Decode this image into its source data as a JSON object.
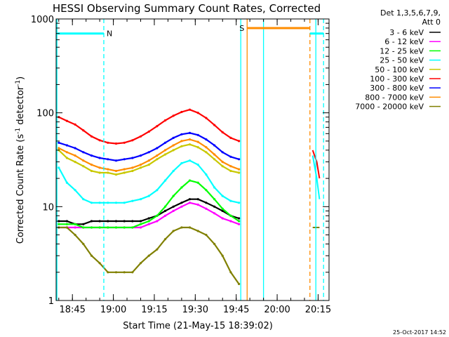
{
  "chart_data": {
    "type": "line",
    "title": "HESSI Observing Summary Count Rates, Corrected",
    "xlabel": "Start Time (21-May-15 18:39:02)",
    "ylabel_prefix": "Corrected Count Rate (s",
    "ylabel_sup1": "-1",
    "ylabel_mid": " detector",
    "ylabel_sup2": "-1",
    "ylabel_suffix": ")",
    "yscale": "log",
    "ylim": [
      1,
      1000
    ],
    "y_tick_labels": [
      "1",
      "10",
      "100",
      "1000"
    ],
    "xlim_minutes": [
      "18:39:02",
      "20:19:00"
    ],
    "x_ticks": [
      "18:45",
      "19:00",
      "19:15",
      "19:30",
      "19:45",
      "20:00",
      "20:15"
    ],
    "timestamp": "25-Oct-2017 14:52",
    "legend": {
      "header1": "Det 1,3,5,6,7,9,",
      "header2": "Att 0",
      "entries": [
        {
          "label": "3 - 6 keV",
          "color": "#000000"
        },
        {
          "label": "6 - 12 keV",
          "color": "#ff00ff"
        },
        {
          "label": "12 - 25 keV",
          "color": "#00ff00"
        },
        {
          "label": "25 - 50 keV",
          "color": "#00ffff"
        },
        {
          "label": "50 - 100 keV",
          "color": "#c8c800"
        },
        {
          "label": "100 - 300 keV",
          "color": "#ff0000"
        },
        {
          "label": "300 - 800 keV",
          "color": "#0000ff"
        },
        {
          "label": "800 - 7000 keV",
          "color": "#ff8c00"
        },
        {
          "label": "7000 - 20000 keV",
          "color": "#808000"
        }
      ]
    },
    "flags": [
      {
        "label": "N",
        "start": "18:39:02",
        "end": "18:56:30",
        "level": 700,
        "color": "#00ffff"
      },
      {
        "label": "S",
        "start": "19:49:00",
        "end": "20:12:00",
        "level": 800,
        "color": "#ff8c00"
      },
      {
        "label": "",
        "start": "20:12:00",
        "end": "20:17:00",
        "level": 700,
        "color": "#00ffff"
      }
    ],
    "vlines": [
      {
        "time": "18:39:20",
        "style": "solid",
        "color": "#00ffff"
      },
      {
        "time": "18:56:30",
        "style": "dashed",
        "color": "#00ffff"
      },
      {
        "time": "19:46:40",
        "style": "solid",
        "color": "#00ffff"
      },
      {
        "time": "19:49:00",
        "style": "solid",
        "color": "#ff8c00"
      },
      {
        "time": "19:55:00",
        "style": "solid",
        "color": "#00ffff"
      },
      {
        "time": "20:12:00",
        "style": "dashed",
        "color": "#ff8c00"
      },
      {
        "time": "20:14:10",
        "style": "solid",
        "color": "#00ffff"
      },
      {
        "time": "20:17:00",
        "style": "dashed",
        "color": "#00ffff"
      }
    ],
    "x": [
      "18:40",
      "18:43",
      "18:46",
      "18:49",
      "18:52",
      "18:55",
      "18:58",
      "19:01",
      "19:04",
      "19:07",
      "19:10",
      "19:13",
      "19:16",
      "19:19",
      "19:22",
      "19:25",
      "19:28",
      "19:31",
      "19:34",
      "19:37",
      "19:40",
      "19:43",
      "19:46"
    ],
    "series": [
      {
        "label": "3 - 6 keV",
        "color": "#000000",
        "values": [
          7,
          7,
          6.5,
          6.5,
          7,
          7,
          7,
          7,
          7,
          7,
          7,
          7.5,
          8,
          9,
          10,
          11,
          12,
          12,
          11,
          10,
          9,
          8,
          7.5
        ]
      },
      {
        "label": "6 - 12 keV",
        "color": "#ff00ff",
        "values": [
          6,
          6,
          6,
          6,
          6,
          6,
          6,
          6,
          6,
          6,
          6,
          6.5,
          7,
          8,
          9,
          10,
          11,
          10.5,
          9.5,
          8.5,
          7.5,
          7,
          6.5
        ]
      },
      {
        "label": "12 - 25 keV",
        "color": "#00ff00",
        "values": [
          6.5,
          6.5,
          6.5,
          6,
          6,
          6,
          6,
          6,
          6,
          6,
          6.5,
          7,
          8,
          10,
          13,
          16,
          19,
          18,
          15,
          12,
          9.5,
          8,
          7
        ]
      },
      {
        "label": "25 - 50 keV",
        "color": "#00ffff",
        "values": [
          26,
          18,
          15,
          12,
          11,
          11,
          11,
          11,
          11,
          11.5,
          12,
          13,
          15,
          19,
          24,
          29,
          31,
          28,
          22,
          16,
          13,
          11.5,
          11
        ]
      },
      {
        "label": "50 - 100 keV",
        "color": "#c8c800",
        "values": [
          40,
          33,
          30,
          27,
          24,
          23,
          23,
          22,
          23,
          24,
          26,
          28,
          32,
          36,
          40,
          44,
          46,
          43,
          38,
          32,
          27,
          24,
          23
        ]
      },
      {
        "label": "100 - 300 keV",
        "color": "#ff0000",
        "values": [
          90,
          82,
          75,
          65,
          56,
          51,
          48,
          47,
          48,
          51,
          56,
          63,
          72,
          83,
          93,
          102,
          108,
          100,
          88,
          74,
          62,
          54,
          50
        ]
      },
      {
        "label": "300 - 800 keV",
        "color": "#0000ff",
        "values": [
          48,
          45,
          42,
          38,
          35,
          33,
          32,
          31,
          32,
          33,
          35,
          38,
          42,
          48,
          54,
          59,
          61,
          58,
          52,
          45,
          38,
          34,
          32
        ]
      },
      {
        "label": "800 - 7000 keV",
        "color": "#ff8c00",
        "values": [
          42,
          38,
          35,
          31,
          28,
          26,
          25,
          24,
          25,
          26,
          28,
          31,
          35,
          40,
          45,
          50,
          52,
          49,
          43,
          36,
          30,
          27,
          25
        ]
      },
      {
        "label": "7000 - 20000 keV",
        "color": "#808000",
        "values": [
          6,
          6,
          5,
          4,
          3,
          2.5,
          2,
          2,
          2,
          2,
          2.5,
          3,
          3.5,
          4.5,
          5.5,
          6,
          6,
          5.5,
          5,
          4,
          3,
          2,
          1.5
        ]
      }
    ],
    "end_segment": {
      "x": [
        "20:13:00",
        "20:14:30",
        "20:15:30"
      ],
      "series": [
        {
          "label": "100 - 300 keV",
          "color": "#ff0000",
          "values": [
            40,
            30,
            20
          ]
        },
        {
          "label": "25 - 50 keV",
          "color": "#00ffff",
          "values": [
            35,
            20,
            12
          ]
        },
        {
          "label": "7000 - 20000 keV",
          "color": "#808000",
          "values": [
            6,
            6,
            6
          ]
        }
      ]
    }
  }
}
